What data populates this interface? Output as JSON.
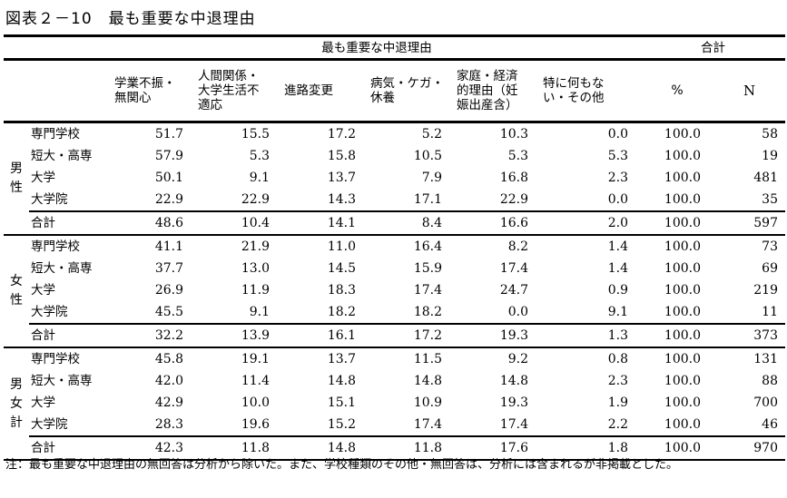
{
  "title": {
    "number": "図表２－10",
    "text": "最も重要な中退理由"
  },
  "table": {
    "group_header": "最も重要な中退理由",
    "total_header": "合計",
    "columns": [
      "学業不振・\n無関心",
      "人間関係・\n大学生活不\n適応",
      "進路変更",
      "病気・ケガ・\n休養",
      "家庭・経済\n的理由（妊\n娠出産含）",
      "特に何もな\nい・その他",
      "%",
      "N"
    ],
    "groups": [
      {
        "label": [
          "男",
          "性"
        ],
        "rows": [
          {
            "label": "専門学校",
            "values": [
              "51.7",
              "15.5",
              "17.2",
              "5.2",
              "10.3",
              "0.0",
              "100.0",
              "58"
            ]
          },
          {
            "label": "短大・高専",
            "values": [
              "57.9",
              "5.3",
              "15.8",
              "10.5",
              "5.3",
              "5.3",
              "100.0",
              "19"
            ]
          },
          {
            "label": "大学",
            "values": [
              "50.1",
              "9.1",
              "13.7",
              "7.9",
              "16.8",
              "2.3",
              "100.0",
              "481"
            ]
          },
          {
            "label": "大学院",
            "values": [
              "22.9",
              "22.9",
              "14.3",
              "17.1",
              "22.9",
              "0.0",
              "100.0",
              "35"
            ]
          }
        ],
        "subtotal": {
          "label": "合計",
          "values": [
            "48.6",
            "10.4",
            "14.1",
            "8.4",
            "16.6",
            "2.0",
            "100.0",
            "597"
          ]
        }
      },
      {
        "label": [
          "女",
          "性"
        ],
        "rows": [
          {
            "label": "専門学校",
            "values": [
              "41.1",
              "21.9",
              "11.0",
              "16.4",
              "8.2",
              "1.4",
              "100.0",
              "73"
            ]
          },
          {
            "label": "短大・高専",
            "values": [
              "37.7",
              "13.0",
              "14.5",
              "15.9",
              "17.4",
              "1.4",
              "100.0",
              "69"
            ]
          },
          {
            "label": "大学",
            "values": [
              "26.9",
              "11.9",
              "18.3",
              "17.4",
              "24.7",
              "0.9",
              "100.0",
              "219"
            ]
          },
          {
            "label": "大学院",
            "values": [
              "45.5",
              "9.1",
              "18.2",
              "18.2",
              "0.0",
              "9.1",
              "100.0",
              "11"
            ]
          }
        ],
        "subtotal": {
          "label": "合計",
          "values": [
            "32.2",
            "13.9",
            "16.1",
            "17.2",
            "19.3",
            "1.3",
            "100.0",
            "373"
          ]
        }
      },
      {
        "label": [
          "男",
          "女",
          "計"
        ],
        "rows": [
          {
            "label": "専門学校",
            "values": [
              "45.8",
              "19.1",
              "13.7",
              "11.5",
              "9.2",
              "0.8",
              "100.0",
              "131"
            ]
          },
          {
            "label": "短大・高専",
            "values": [
              "42.0",
              "11.4",
              "14.8",
              "14.8",
              "14.8",
              "2.3",
              "100.0",
              "88"
            ]
          },
          {
            "label": "大学",
            "values": [
              "42.9",
              "10.0",
              "15.1",
              "10.9",
              "19.3",
              "1.9",
              "100.0",
              "700"
            ]
          },
          {
            "label": "大学院",
            "values": [
              "28.3",
              "19.6",
              "15.2",
              "17.4",
              "17.4",
              "2.2",
              "100.0",
              "46"
            ]
          }
        ],
        "subtotal": {
          "label": "合計",
          "values": [
            "42.3",
            "11.8",
            "14.8",
            "11.8",
            "17.6",
            "1.8",
            "100.0",
            "970"
          ]
        }
      }
    ]
  },
  "note": "注：最も重要な中退理由の無回答は分析から除いた。また、学校種類のその他・無回答は、分析には含まれるが非掲載とした。"
}
